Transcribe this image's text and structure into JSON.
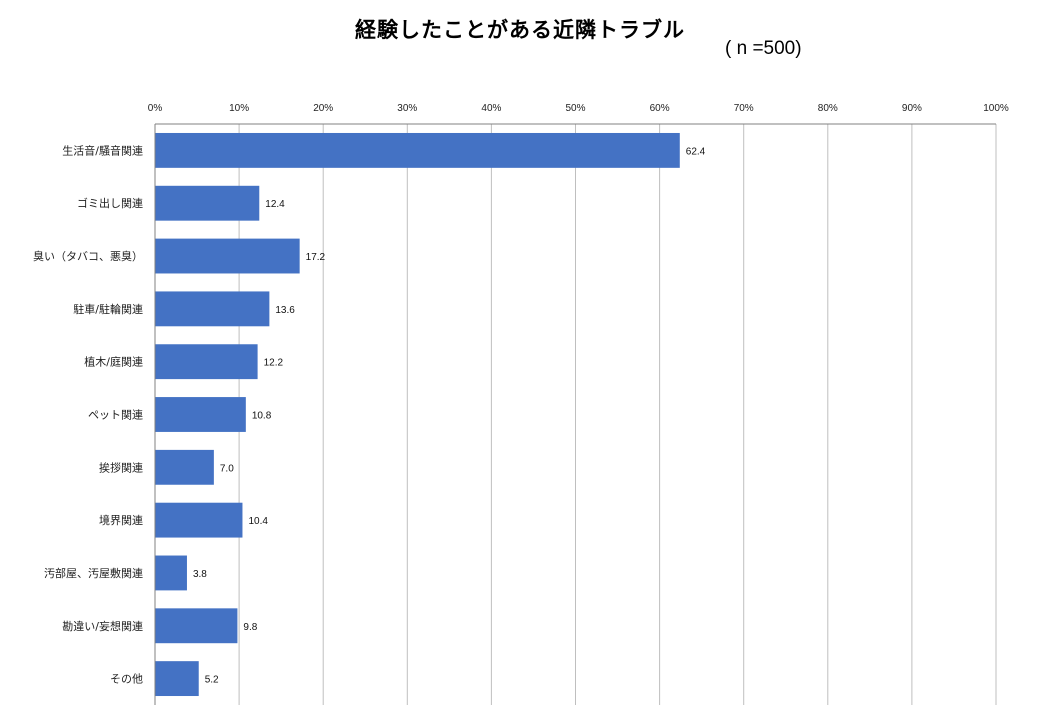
{
  "chart_data": {
    "type": "bar",
    "orientation": "horizontal",
    "title": "経験したことがある近隣トラブル",
    "subtitle": "( n =500)",
    "categories": [
      "生活音/騒音関連",
      "ゴミ出し関連",
      "臭い（タバコ、悪臭）",
      "駐車/駐輪関連",
      "植木/庭関連",
      "ペット関連",
      "挨拶関連",
      "境界関連",
      "汚部屋、汚屋敷関連",
      "勘違い/妄想関連",
      "その他"
    ],
    "values": [
      62.4,
      12.4,
      17.2,
      13.6,
      12.2,
      10.8,
      7.0,
      10.4,
      3.8,
      9.8,
      5.2
    ],
    "value_labels": [
      "62.4",
      "12.4",
      "17.2",
      "13.6",
      "12.2",
      "10.8",
      "7.0",
      "10.4",
      "3.8",
      "9.8",
      "5.2"
    ],
    "xlim": [
      0,
      100
    ],
    "x_ticks": [
      "0%",
      "10%",
      "20%",
      "30%",
      "40%",
      "50%",
      "60%",
      "70%",
      "80%",
      "90%",
      "100%"
    ],
    "x_axis_position": "top",
    "grid": true,
    "bar_color": "#4472C4",
    "grid_color": "#BFBFBF"
  }
}
